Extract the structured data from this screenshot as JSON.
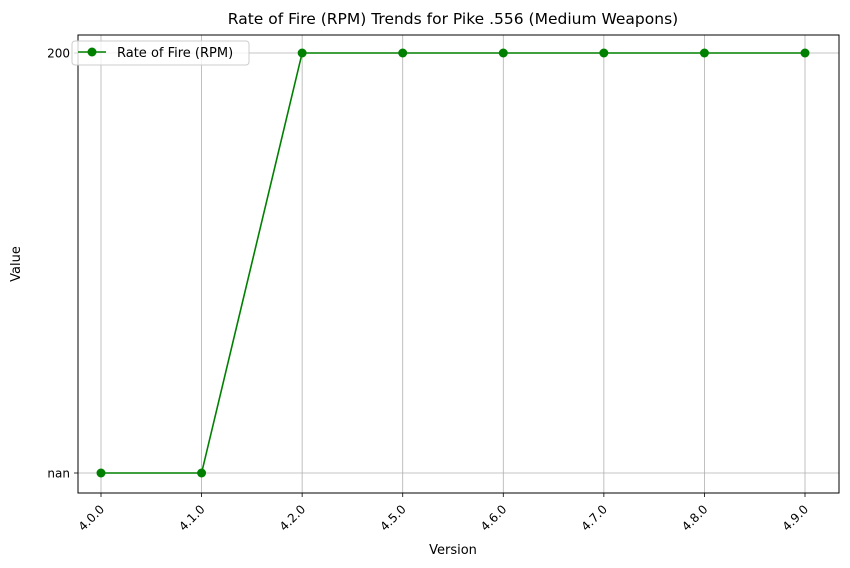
{
  "chart_data": {
    "type": "line",
    "title": "Rate of Fire (RPM) Trends for Pike .556 (Medium Weapons)",
    "xlabel": "Version",
    "ylabel": "Value",
    "categories": [
      "4.0.0",
      "4.1.0",
      "4.2.0",
      "4.5.0",
      "4.6.0",
      "4.7.0",
      "4.8.0",
      "4.9.0"
    ],
    "y_ticks": [
      "nan",
      "200"
    ],
    "series": [
      {
        "name": "Rate of Fire (RPM)",
        "values": [
          "nan",
          "nan",
          "200",
          "200",
          "200",
          "200",
          "200",
          "200"
        ],
        "color": "#008000",
        "marker": "circle"
      }
    ],
    "grid": true,
    "legend_position": "top-left",
    "tick_rotation_x": 45
  }
}
